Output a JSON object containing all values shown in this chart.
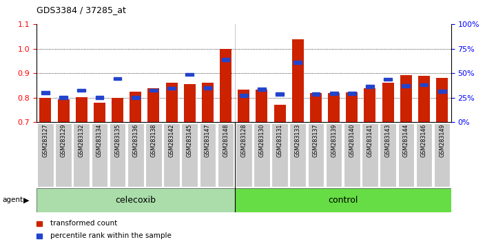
{
  "title": "GDS3384 / 37285_at",
  "samples": [
    "GSM283127",
    "GSM283129",
    "GSM283132",
    "GSM283134",
    "GSM283135",
    "GSM283136",
    "GSM283138",
    "GSM283142",
    "GSM283145",
    "GSM283147",
    "GSM283148",
    "GSM283128",
    "GSM283130",
    "GSM283131",
    "GSM283133",
    "GSM283137",
    "GSM283139",
    "GSM283140",
    "GSM283141",
    "GSM283143",
    "GSM283144",
    "GSM283146",
    "GSM283149"
  ],
  "transformed_count": [
    0.8,
    0.792,
    0.803,
    0.78,
    0.8,
    0.825,
    0.838,
    0.862,
    0.855,
    0.862,
    0.999,
    0.832,
    0.832,
    0.77,
    1.04,
    0.82,
    0.82,
    0.822,
    0.838,
    0.862,
    0.893,
    0.888,
    0.88
  ],
  "percentile_rank": [
    0.82,
    0.8,
    0.83,
    0.8,
    0.878,
    0.8,
    0.83,
    0.838,
    0.895,
    0.84,
    0.955,
    0.808,
    0.835,
    0.814,
    0.945,
    0.815,
    0.818,
    0.818,
    0.845,
    0.875,
    0.848,
    0.853,
    0.825
  ],
  "n_celecoxib": 11,
  "n_control": 12,
  "ymin": 0.7,
  "ymax": 1.1,
  "bar_color": "#cc2200",
  "dot_color": "#2244cc",
  "celecoxib_color": "#aaddaa",
  "control_color": "#66dd44",
  "tick_bg": "#cccccc",
  "right_axis_ticks": [
    0,
    25,
    50,
    75,
    100
  ],
  "legend_red": "transformed count",
  "legend_blue": "percentile rank within the sample"
}
